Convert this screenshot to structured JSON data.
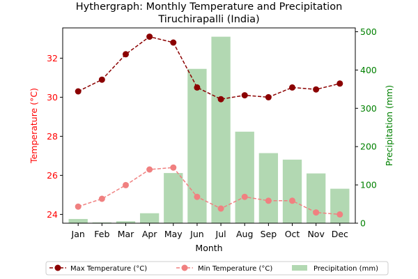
{
  "chart_data": {
    "type": "bar",
    "title": "Hythergraph: Monthly Temperature and Precipitation",
    "subtitle": "Tiruchirapalli (India)",
    "xlabel": "Month",
    "ylabel_left": "Temperature (°C)",
    "ylabel_right": "Precipitation (mm)",
    "categories": [
      "Jan",
      "Feb",
      "Mar",
      "Apr",
      "May",
      "Jun",
      "Jul",
      "Aug",
      "Sep",
      "Oct",
      "Nov",
      "Dec"
    ],
    "ylim_left": [
      23.55,
      33.55
    ],
    "yticks_left": [
      24,
      26,
      28,
      30,
      32
    ],
    "ylim_right": [
      0,
      510
    ],
    "yticks_right": [
      0,
      100,
      200,
      300,
      400,
      500
    ],
    "grid": false,
    "legend_placement": "bottom-center",
    "series": [
      {
        "name": "Max Temperature (°C)",
        "kind": "line",
        "axis": "left",
        "style": "dashed",
        "marker": "circle",
        "color": "#8b0000",
        "values": [
          30.3,
          30.9,
          32.2,
          33.1,
          32.8,
          30.5,
          29.9,
          30.1,
          30.0,
          30.5,
          30.4,
          30.7
        ]
      },
      {
        "name": "Min Temperature (°C)",
        "kind": "line",
        "axis": "left",
        "style": "dashed",
        "marker": "circle",
        "color": "#f08080",
        "values": [
          24.4,
          24.8,
          25.5,
          26.3,
          26.4,
          24.9,
          24.3,
          24.9,
          24.7,
          24.7,
          24.1,
          24.0
        ]
      },
      {
        "name": "Precipitation (mm)",
        "kind": "bar",
        "axis": "right",
        "color": "#b2d8b2",
        "values": [
          11,
          2,
          5,
          26,
          131,
          403,
          487,
          239,
          183,
          166,
          130,
          90
        ]
      }
    ]
  },
  "colors": {
    "left_axis": "#ff0000",
    "right_axis": "#008000",
    "axis_line": "#000000"
  }
}
